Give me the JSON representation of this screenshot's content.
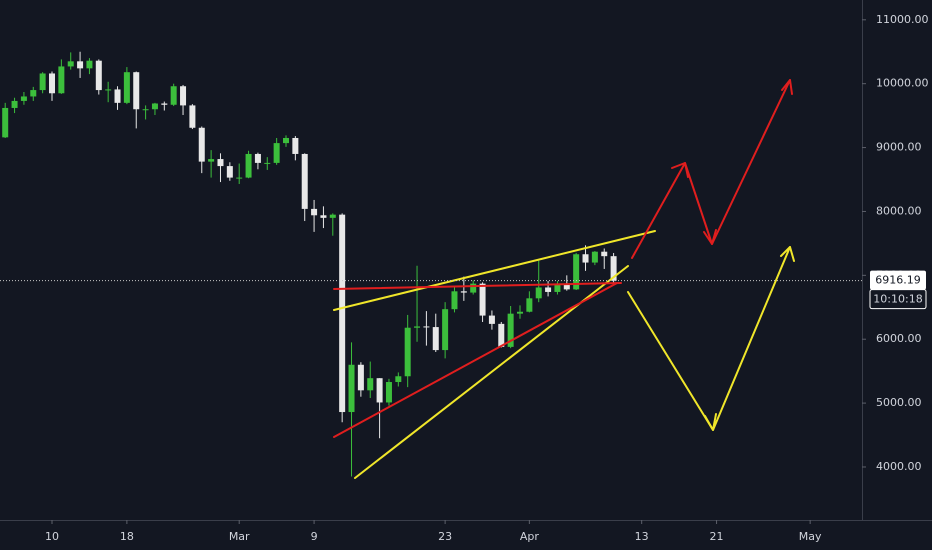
{
  "chart_data": {
    "type": "candlestick",
    "categories": [
      null,
      null,
      null,
      null,
      null,
      "10",
      null,
      null,
      null,
      null,
      null,
      null,
      null,
      "18",
      null,
      null,
      null,
      null,
      null,
      null,
      null,
      null,
      null,
      null,
      null,
      "Mar",
      null,
      null,
      null,
      null,
      null,
      null,
      null,
      "9",
      null,
      null,
      null,
      null,
      null,
      null,
      null,
      null,
      null,
      null,
      null,
      null,
      null,
      "23",
      null,
      null,
      null,
      null,
      null,
      null,
      null,
      null,
      "Apr",
      null,
      null,
      null,
      null,
      null,
      null,
      null,
      null,
      null,
      null,
      null,
      "13",
      null,
      null,
      null,
      null,
      null,
      null,
      null,
      "21",
      null,
      null,
      null,
      null,
      null,
      null,
      null,
      null,
      null,
      "May",
      null,
      null,
      null,
      null,
      null
    ],
    "open": [
      9160,
      9620,
      9730,
      9800,
      9900,
      10160,
      9850,
      10270,
      10350,
      10240,
      10360,
      9900,
      9910,
      9700,
      10180,
      9600,
      9600,
      9690,
      9670,
      9960,
      9660,
      9310,
      8780,
      8820,
      8710,
      8530,
      8530,
      8900,
      8760,
      8760,
      9070,
      9150,
      8900,
      8040,
      7940,
      7900,
      7950,
      4860,
      5600,
      5200,
      5390,
      5010,
      5330,
      5420,
      6180,
      6200,
      6190,
      5830,
      6470,
      6750,
      6730,
      6870,
      6370,
      6240,
      5880,
      6400,
      6430,
      6640,
      6810,
      6740,
      6870,
      6780,
      7330,
      7200,
      7370,
      7300,
      null,
      null,
      null,
      null,
      null,
      null,
      null,
      null,
      null,
      null,
      null,
      null,
      null,
      null,
      null,
      null,
      null,
      null,
      null,
      null,
      null,
      null,
      null,
      null,
      null,
      null
    ],
    "high": [
      9700,
      9780,
      9870,
      9950,
      10180,
      10190,
      10380,
      10490,
      10500,
      10400,
      10380,
      10030,
      9960,
      10260,
      10190,
      9660,
      9700,
      9720,
      10000,
      9980,
      9680,
      9330,
      8960,
      8910,
      8770,
      8750,
      8950,
      8920,
      8850,
      9150,
      9190,
      9180,
      8910,
      8180,
      8080,
      7970,
      7970,
      5950,
      5640,
      5650,
      5390,
      5380,
      5480,
      6380,
      7150,
      6440,
      6400,
      6580,
      6830,
      6980,
      6920,
      6890,
      6450,
      6270,
      6520,
      6530,
      6750,
      7230,
      6910,
      6910,
      7000,
      7350,
      7470,
      7380,
      7420,
      7350,
      null,
      null,
      null,
      null,
      null,
      null,
      null,
      null,
      null,
      null,
      null,
      null,
      null,
      null,
      null,
      null,
      null,
      null,
      null,
      null,
      null,
      null,
      null,
      null,
      null,
      null
    ],
    "low": [
      9150,
      9540,
      9670,
      9730,
      9850,
      9730,
      9840,
      10220,
      10090,
      10150,
      9830,
      9710,
      9590,
      9680,
      9300,
      9440,
      9510,
      9580,
      9650,
      9510,
      9290,
      8600,
      8530,
      8460,
      8480,
      8430,
      8520,
      8660,
      8650,
      8730,
      9010,
      8800,
      7850,
      7680,
      7740,
      7620,
      4700,
      3850,
      5100,
      5080,
      4450,
      4960,
      5260,
      5250,
      5960,
      5900,
      5800,
      5700,
      6420,
      6600,
      6700,
      6270,
      6150,
      5870,
      5860,
      6320,
      6420,
      6580,
      6670,
      6700,
      6760,
      6770,
      7070,
      7160,
      7100,
      6880,
      null,
      null,
      null,
      null,
      null,
      null,
      null,
      null,
      null,
      null,
      null,
      null,
      null,
      null,
      null,
      null,
      null,
      null,
      null,
      null,
      null,
      null,
      null,
      null,
      null,
      null
    ],
    "close": [
      9620,
      9730,
      9800,
      9900,
      10160,
      9850,
      10270,
      10350,
      10240,
      10360,
      9900,
      9910,
      9700,
      10180,
      9600,
      9600,
      9690,
      9670,
      9960,
      9660,
      9310,
      8780,
      8820,
      8710,
      8530,
      8530,
      8900,
      8760,
      8760,
      9070,
      9150,
      8900,
      8040,
      7940,
      7900,
      7950,
      4860,
      5600,
      5200,
      5390,
      5010,
      5330,
      5420,
      6180,
      6200,
      6190,
      5830,
      6470,
      6750,
      6730,
      6870,
      6370,
      6240,
      5880,
      6400,
      6430,
      6640,
      6810,
      6740,
      6870,
      6780,
      7330,
      7200,
      7370,
      7300,
      6916,
      null,
      null,
      null,
      null,
      null,
      null,
      null,
      null,
      null,
      null,
      null,
      null,
      null,
      null,
      null,
      null,
      null,
      null,
      null,
      null,
      null,
      null,
      null,
      null,
      null,
      null
    ],
    "up_color": "#3cbf3c",
    "down_color": "#e8e8e8",
    "ylim": [
      3170,
      11310
    ],
    "yticks": [
      {
        "value": 4000,
        "label": "4000.00"
      },
      {
        "value": 5000,
        "label": "5000.00"
      },
      {
        "value": 6000,
        "label": "6000.00"
      },
      {
        "value": 7000,
        "label": "7000.00"
      },
      {
        "value": 8000,
        "label": "8000.00"
      },
      {
        "value": 9000,
        "label": "9000.00"
      },
      {
        "value": 10000,
        "label": "10000.00"
      },
      {
        "value": 11000,
        "label": "11000.00"
      }
    ],
    "last_price": 6916.19,
    "countdown": "10:10:18"
  }
}
